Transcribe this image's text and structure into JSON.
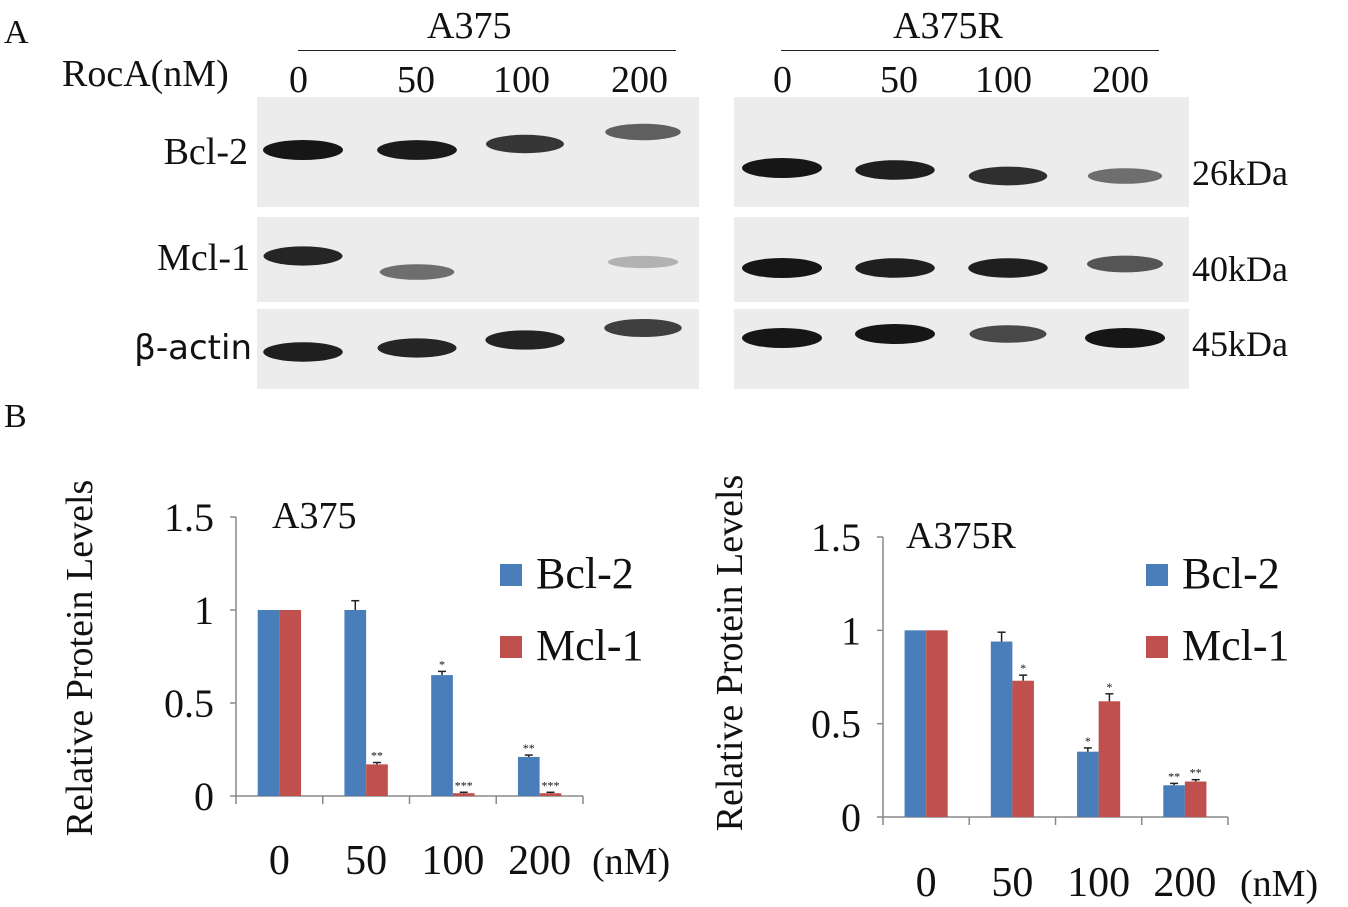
{
  "panelA": {
    "letter": "A",
    "treatment_label": "RocA(nM)",
    "groups": [
      {
        "name": "A375",
        "doses": [
          "0",
          "50",
          "100",
          "200"
        ]
      },
      {
        "name": "A375R",
        "doses": [
          "0",
          "50",
          "100",
          "200"
        ]
      }
    ],
    "proteins": [
      {
        "name": "Bcl-2",
        "weight": "26kDa"
      },
      {
        "name": "Mcl-1",
        "weight": "40kDa"
      },
      {
        "name": "β-actin",
        "weight": "45kDa"
      }
    ],
    "band_intensity": {
      "A375": {
        "Bcl-2": [
          1.0,
          0.98,
          0.8,
          0.55
        ],
        "Mcl-1": [
          0.9,
          0.45,
          0.0,
          0.03
        ],
        "β-actin": [
          0.95,
          0.9,
          0.92,
          0.75
        ]
      },
      "A375R": {
        "Bcl-2": [
          1.0,
          0.95,
          0.85,
          0.45
        ],
        "Mcl-1": [
          1.0,
          0.95,
          0.95,
          0.6
        ],
        "β-actin": [
          1.0,
          1.0,
          0.7,
          1.0
        ]
      }
    }
  },
  "panelB": {
    "letter": "B"
  },
  "colors": {
    "bcl2": "#4a7ebb",
    "mcl1": "#c0504d",
    "axis": "#888888",
    "band": "#161616",
    "blot_bg": "#ececec"
  },
  "chart_data": [
    {
      "type": "bar",
      "title": "A375",
      "ylabel": "Relative Protein Levels",
      "xlabel": "",
      "x_unit": "(nM)",
      "categories": [
        "0",
        "50",
        "100",
        "200"
      ],
      "yticks": [
        "0",
        "0.5",
        "1",
        "1.5"
      ],
      "ylim": [
        0,
        1.5
      ],
      "series": [
        {
          "name": "Bcl-2",
          "values": [
            1.0,
            1.0,
            0.65,
            0.21
          ],
          "errors": [
            0,
            0.05,
            0.02,
            0.01
          ],
          "sig": [
            "",
            "",
            "*",
            "**"
          ]
        },
        {
          "name": "Mcl-1",
          "values": [
            1.0,
            0.17,
            0.015,
            0.015
          ],
          "errors": [
            0,
            0.01,
            0.005,
            0.005
          ],
          "sig": [
            "",
            "**",
            "***",
            "***"
          ]
        }
      ],
      "legend": "right"
    },
    {
      "type": "bar",
      "title": "A375R",
      "ylabel": "Relative Protein Levels",
      "xlabel": "",
      "x_unit": "(nM)",
      "categories": [
        "0",
        "50",
        "100",
        "200"
      ],
      "yticks": [
        "0",
        "0.5",
        "1",
        "1.5"
      ],
      "ylim": [
        0,
        1.5
      ],
      "series": [
        {
          "name": "Bcl-2",
          "values": [
            1.0,
            0.94,
            0.35,
            0.17
          ],
          "errors": [
            0,
            0.05,
            0.02,
            0.01
          ],
          "sig": [
            "",
            "",
            "*",
            "**"
          ]
        },
        {
          "name": "Mcl-1",
          "values": [
            1.0,
            0.73,
            0.62,
            0.19
          ],
          "errors": [
            0,
            0.03,
            0.04,
            0.01
          ],
          "sig": [
            "",
            "*",
            "*",
            "**"
          ]
        }
      ],
      "legend": "right"
    }
  ]
}
